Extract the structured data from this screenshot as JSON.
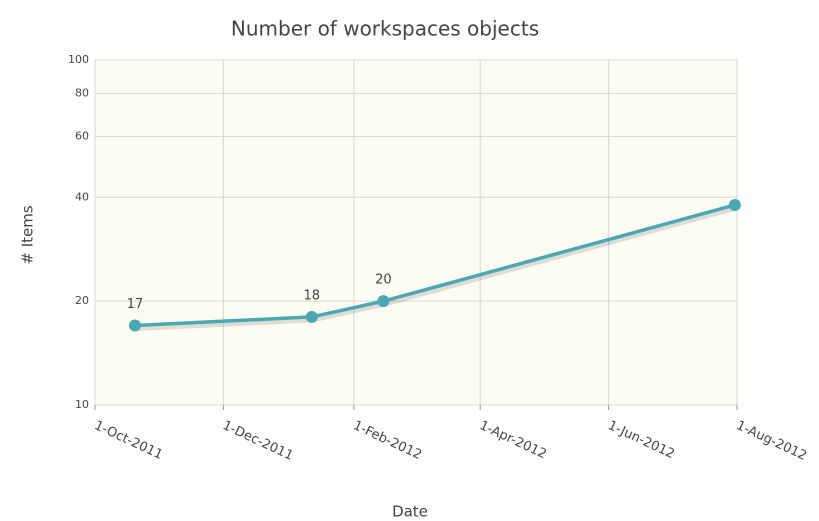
{
  "chart_data": {
    "type": "line",
    "title": "Number of workspaces objects",
    "xlabel": "Date",
    "ylabel": "# Items",
    "x": [
      "2011-10-20",
      "2012-01-12",
      "2012-02-15",
      "2012-07-31"
    ],
    "series": [
      {
        "name": "Items",
        "color": "#4aa8b2",
        "values": [
          17,
          18,
          20,
          38
        ],
        "value_labels": [
          17,
          18,
          20,
          null
        ]
      }
    ],
    "xlim": [
      "2011-10-01",
      "2012-08-01"
    ],
    "xticks": [
      {
        "value": "2011-10-01",
        "label": "1-Oct-2011"
      },
      {
        "value": "2011-12-01",
        "label": "1-Dec-2011"
      },
      {
        "value": "2012-02-01",
        "label": "1-Feb-2012"
      },
      {
        "value": "2012-04-01",
        "label": "1-Apr-2012"
      },
      {
        "value": "2012-06-01",
        "label": "1-Jun-2012"
      },
      {
        "value": "2012-08-01",
        "label": "1-Aug-2012"
      }
    ],
    "ylim": [
      10,
      100
    ],
    "yticks": [
      10,
      20,
      40,
      60,
      80,
      100
    ],
    "ylog": true,
    "grid": true
  }
}
